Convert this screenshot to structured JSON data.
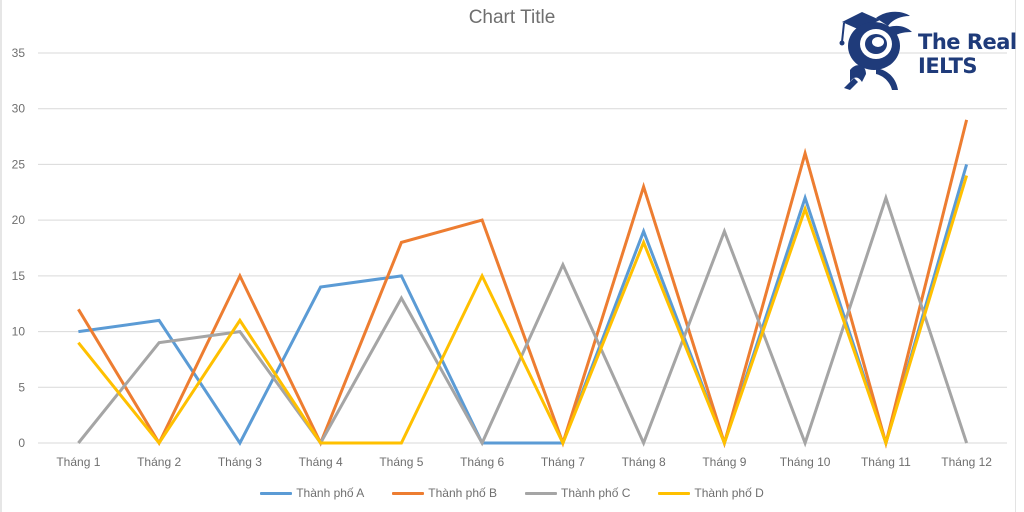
{
  "chart_data": {
    "type": "line",
    "title": "Chart Title",
    "xlabel": "",
    "ylabel": "",
    "ylim": [
      0,
      35
    ],
    "yticks": [
      0,
      5,
      10,
      15,
      20,
      25,
      30,
      35
    ],
    "grid": true,
    "legend_position": "bottom",
    "categories": [
      "Tháng 1",
      "Tháng 2",
      "Tháng 3",
      "Tháng 4",
      "Tháng 5",
      "Tháng 6",
      "Tháng 7",
      "Tháng 8",
      "Tháng 9",
      "Tháng 10",
      "Tháng 11",
      "Tháng 12"
    ],
    "series": [
      {
        "name": "Thành phố A",
        "color": "#5b9bd5",
        "values": [
          10,
          11,
          0,
          14,
          15,
          0,
          0,
          19,
          0,
          22,
          0,
          25
        ]
      },
      {
        "name": "Thành phố B",
        "color": "#ed7d31",
        "values": [
          12,
          0,
          15,
          0,
          18,
          20,
          0,
          23,
          0,
          26,
          0,
          29
        ]
      },
      {
        "name": "Thành phố C",
        "color": "#a5a5a5",
        "values": [
          0,
          9,
          10,
          0,
          13,
          0,
          16,
          0,
          19,
          0,
          22,
          0
        ]
      },
      {
        "name": "Thành phố D",
        "color": "#ffc000",
        "values": [
          9,
          0,
          11,
          0,
          0,
          15,
          0,
          18,
          0,
          21,
          0,
          24
        ]
      }
    ]
  },
  "logo": {
    "line1": "The Real",
    "line2": "IELTS",
    "color": "#1f3b7a"
  }
}
